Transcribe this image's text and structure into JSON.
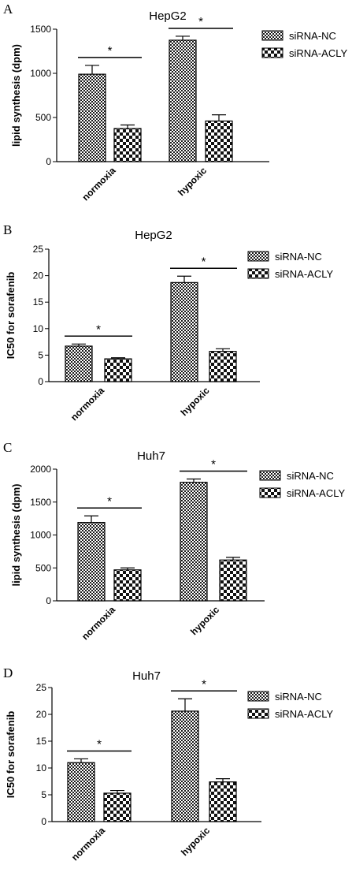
{
  "colors": {
    "bar_stroke": "#000000",
    "nc_pattern": "dense-checker",
    "acly_pattern": "coarse-checker"
  },
  "chart_data": [
    {
      "panel": "A",
      "type": "bar",
      "title": "HepG2",
      "ylabel": "lipid synthesis (dpm)",
      "xlabel": "",
      "categories": [
        "normoxia",
        "hypoxic"
      ],
      "ylim": [
        0,
        1500
      ],
      "yticks": [
        "0",
        "500",
        "1000",
        "1500"
      ],
      "series": [
        {
          "name": "siRNA-NC",
          "values": [
            990,
            1375
          ],
          "errors": [
            100,
            45
          ]
        },
        {
          "name": "siRNA-ACLY",
          "values": [
            375,
            460
          ],
          "errors": [
            40,
            70
          ]
        }
      ],
      "significance": [
        "*",
        "*"
      ],
      "legend": "top-right",
      "grid": false
    },
    {
      "panel": "B",
      "type": "bar",
      "title": "HepG2",
      "ylabel": "IC50 for sorafenib",
      "xlabel": "",
      "categories": [
        "normoxia",
        "hypoxic"
      ],
      "ylim": [
        0,
        25
      ],
      "yticks": [
        "0",
        "5",
        "10",
        "15",
        "20",
        "25"
      ],
      "series": [
        {
          "name": "siRNA-NC",
          "values": [
            6.7,
            18.7
          ],
          "errors": [
            0.4,
            1.2
          ]
        },
        {
          "name": "siRNA-ACLY",
          "values": [
            4.3,
            5.7
          ],
          "errors": [
            0.2,
            0.5
          ]
        }
      ],
      "significance": [
        "*",
        "*"
      ],
      "legend": "top-right",
      "grid": false
    },
    {
      "panel": "C",
      "type": "bar",
      "title": "Huh7",
      "ylabel": "lipid synthesis (dpm)",
      "xlabel": "",
      "categories": [
        "normoxia",
        "hypoxic"
      ],
      "ylim": [
        0,
        2000
      ],
      "yticks": [
        "0",
        "500",
        "1000",
        "1500",
        "2000"
      ],
      "series": [
        {
          "name": "siRNA-NC",
          "values": [
            1190,
            1800
          ],
          "errors": [
            100,
            50
          ]
        },
        {
          "name": "siRNA-ACLY",
          "values": [
            470,
            620
          ],
          "errors": [
            30,
            40
          ]
        }
      ],
      "significance": [
        "*",
        "*"
      ],
      "legend": "top-right",
      "grid": false
    },
    {
      "panel": "D",
      "type": "bar",
      "title": "Huh7",
      "ylabel": "IC50 for sorafenib",
      "xlabel": "",
      "categories": [
        "normoxia",
        "hypoxic"
      ],
      "ylim": [
        0,
        25
      ],
      "yticks": [
        "0",
        "5",
        "10",
        "15",
        "20",
        "25"
      ],
      "series": [
        {
          "name": "siRNA-NC",
          "values": [
            11.0,
            20.6
          ],
          "errors": [
            0.7,
            2.3
          ]
        },
        {
          "name": "siRNA-ACLY",
          "values": [
            5.3,
            7.4
          ],
          "errors": [
            0.5,
            0.6
          ]
        }
      ],
      "significance": [
        "*",
        "*"
      ],
      "legend": "top-right",
      "grid": false
    }
  ]
}
